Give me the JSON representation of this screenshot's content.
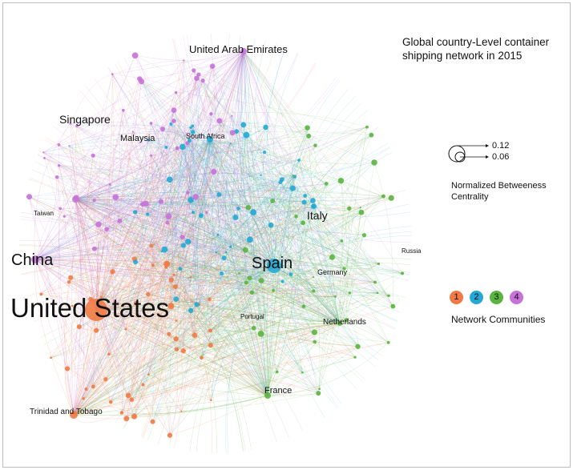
{
  "title": "Global country-Level container shipping network in 2015",
  "size_legend": {
    "values": [
      "0.12",
      "0.06"
    ],
    "label": "Normalized Betweeness Centrality"
  },
  "communities": {
    "label": "Network Communities",
    "items": [
      {
        "id": "1",
        "color": "#f07a45"
      },
      {
        "id": "2",
        "color": "#25a9d4"
      },
      {
        "id": "3",
        "color": "#5ab53f"
      },
      {
        "id": "4",
        "color": "#c772d8"
      }
    ]
  },
  "countries": [
    "United States",
    "China",
    "Spain",
    "Italy",
    "Singapore",
    "United Arab Emirates",
    "Malaysia",
    "South Africa",
    "Taiwan",
    "Russia",
    "Germany",
    "Netherlands",
    "Portugal",
    "France",
    "Trinidad and Tobago"
  ]
}
